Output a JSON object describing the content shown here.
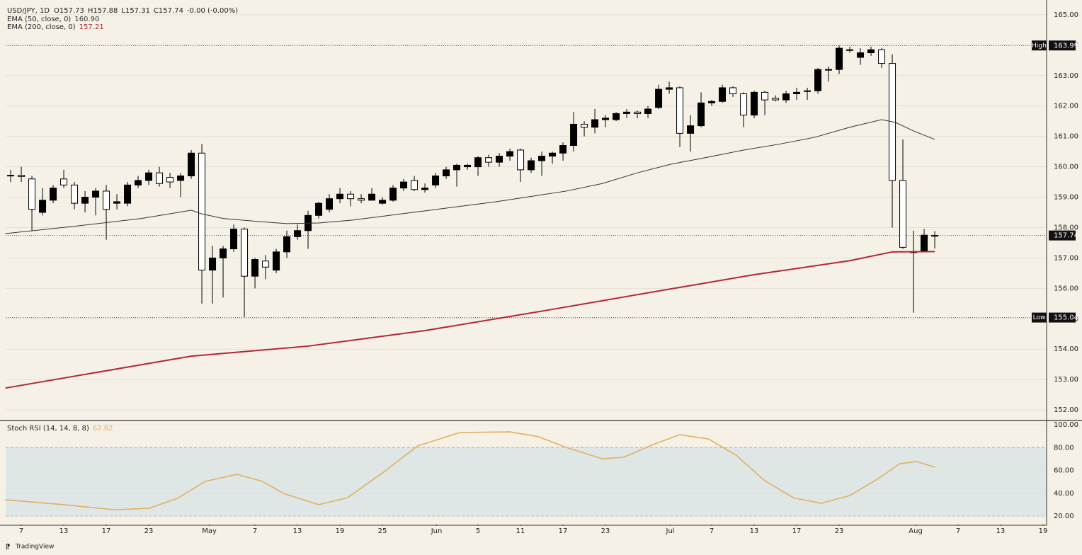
{
  "header": {
    "symbol": "USD/JPY, 1D",
    "ohlc": [
      "O157.73",
      "H157.88",
      "L157.31",
      "C157.74",
      "-0.00 (-0.00%)"
    ]
  },
  "chart_data": [
    {
      "type": "candlestick",
      "up_color": "#000000",
      "down_color": "#ffffff",
      "open": [
        159.7,
        159.72,
        159.6,
        158.5,
        158.9,
        159.6,
        159.4,
        158.8,
        159.0,
        159.2,
        158.8,
        158.8,
        159.4,
        159.55,
        159.8,
        159.65,
        159.55,
        159.7,
        160.45,
        156.6,
        157.0,
        157.3,
        157.95,
        156.4,
        156.9,
        156.6,
        157.2,
        157.7,
        157.9,
        158.4,
        158.6,
        158.95,
        159.1,
        158.95,
        158.9,
        158.8,
        158.9,
        159.3,
        159.55,
        159.25,
        159.4,
        159.7,
        159.9,
        160.0,
        160.0,
        160.3,
        160.15,
        160.35,
        160.55,
        159.9,
        160.2,
        160.35,
        160.45,
        160.7,
        161.4,
        161.3,
        161.55,
        161.55,
        161.75,
        161.8,
        161.75,
        161.95,
        162.55,
        162.6,
        161.1,
        161.35,
        162.1,
        162.15,
        162.6,
        162.4,
        161.7,
        162.45,
        162.25,
        162.2,
        162.4,
        162.5,
        162.5,
        163.2,
        163.2,
        163.85,
        163.6,
        163.75,
        163.85,
        163.4,
        159.55,
        157.2,
        157.2,
        157.73
      ],
      "high": [
        159.9,
        160.0,
        159.7,
        159.3,
        159.4,
        159.9,
        159.5,
        159.2,
        159.3,
        159.4,
        159.1,
        159.5,
        159.7,
        159.9,
        160.0,
        159.8,
        159.8,
        160.55,
        160.75,
        157.4,
        157.4,
        158.1,
        158.0,
        157.0,
        157.1,
        157.3,
        157.9,
        158.1,
        158.55,
        158.85,
        159.1,
        159.3,
        159.2,
        159.1,
        159.3,
        159.0,
        159.4,
        159.6,
        159.7,
        159.45,
        159.8,
        160.0,
        160.1,
        160.1,
        160.35,
        160.4,
        160.45,
        160.6,
        160.6,
        160.3,
        160.5,
        160.5,
        160.8,
        161.8,
        161.5,
        161.9,
        161.7,
        161.8,
        161.9,
        161.85,
        162.0,
        162.7,
        162.8,
        162.65,
        161.7,
        162.45,
        162.2,
        162.7,
        162.65,
        162.45,
        162.5,
        162.5,
        162.35,
        162.5,
        162.6,
        162.6,
        163.25,
        163.3,
        163.99,
        163.95,
        163.9,
        163.95,
        163.9,
        163.7,
        160.9,
        157.9,
        157.95,
        157.88
      ],
      "low": [
        159.5,
        159.5,
        157.9,
        158.4,
        158.8,
        159.3,
        158.6,
        158.5,
        158.4,
        157.6,
        158.6,
        158.7,
        159.3,
        159.4,
        159.35,
        159.3,
        159.0,
        159.6,
        155.5,
        155.5,
        155.7,
        157.2,
        155.05,
        156.0,
        156.3,
        156.5,
        157.0,
        157.6,
        157.3,
        158.3,
        158.5,
        158.8,
        158.7,
        158.8,
        158.9,
        158.75,
        158.85,
        159.2,
        159.2,
        159.15,
        159.3,
        159.6,
        159.35,
        159.9,
        159.7,
        160.0,
        160.0,
        160.2,
        159.5,
        159.8,
        159.7,
        160.1,
        160.2,
        160.5,
        161.0,
        161.1,
        161.3,
        161.5,
        161.6,
        161.6,
        161.6,
        161.9,
        162.4,
        160.65,
        160.5,
        161.3,
        162.0,
        162.1,
        162.3,
        161.3,
        161.6,
        161.7,
        162.15,
        162.1,
        162.2,
        162.2,
        162.4,
        162.8,
        163.05,
        163.75,
        163.35,
        163.65,
        163.25,
        158.0,
        157.3,
        155.2,
        157.2,
        157.31
      ],
      "close": [
        159.72,
        159.68,
        158.6,
        158.9,
        159.3,
        159.4,
        158.8,
        159.0,
        159.2,
        158.6,
        158.85,
        159.4,
        159.55,
        159.8,
        159.45,
        159.5,
        159.7,
        160.45,
        156.6,
        157.0,
        157.3,
        157.95,
        156.4,
        156.95,
        156.7,
        157.2,
        157.7,
        157.9,
        158.4,
        158.8,
        158.95,
        159.1,
        158.95,
        158.9,
        159.1,
        158.9,
        159.3,
        159.5,
        159.25,
        159.3,
        159.7,
        159.9,
        160.05,
        160.05,
        160.3,
        160.15,
        160.35,
        160.5,
        159.9,
        160.2,
        160.35,
        160.45,
        160.7,
        161.4,
        161.3,
        161.55,
        161.6,
        161.75,
        161.8,
        161.75,
        161.9,
        162.55,
        162.6,
        161.1,
        161.35,
        162.1,
        162.15,
        162.6,
        162.4,
        161.7,
        162.45,
        162.2,
        162.2,
        162.4,
        162.45,
        162.5,
        163.2,
        163.2,
        163.9,
        163.85,
        163.75,
        163.85,
        163.4,
        159.55,
        157.35,
        157.2,
        157.75,
        157.74
      ],
      "series": [
        {
          "name": "EMA (50, close, 0)",
          "color": "#333333",
          "legend_value": {
            "value": 160.9,
            "label": "160.90"
          },
          "x": [
            -0.5,
            5.7,
            12.3,
            17,
            18,
            20,
            23.3,
            26,
            29,
            32.3,
            39,
            45.7,
            52.3,
            55.7,
            59,
            62.1,
            65.7,
            69,
            72.3,
            75.7,
            79,
            82,
            83.3,
            85,
            87
          ],
          "values": [
            157.8,
            158.03,
            158.3,
            158.57,
            158.45,
            158.3,
            158.2,
            158.13,
            158.15,
            158.25,
            158.55,
            158.85,
            159.2,
            159.45,
            159.8,
            160.08,
            160.32,
            160.55,
            160.74,
            160.97,
            161.3,
            161.55,
            161.46,
            161.18,
            160.9
          ]
        },
        {
          "name": "EMA (200, close, 0)",
          "color": "#b22833",
          "legend_value": 157.21,
          "x": [
            -0.5,
            17,
            28,
            39,
            50,
            62.1,
            70,
            79,
            83,
            87
          ],
          "values": [
            152.72,
            153.77,
            154.1,
            154.61,
            155.25,
            155.98,
            156.45,
            156.91,
            157.2,
            157.21
          ]
        }
      ],
      "markers": [
        {
          "label": "High",
          "value": 163.99
        },
        {
          "label": "Low",
          "value": 155.04
        }
      ],
      "last_price": 157.74,
      "xlim": [
        -0.47,
        97.53
      ],
      "xticks": [
        {
          "value": 1,
          "label": "7"
        },
        {
          "value": 5,
          "label": "13"
        },
        {
          "value": 9,
          "label": "17"
        },
        {
          "value": 13,
          "label": "23"
        },
        {
          "value": 18.7,
          "label": "May"
        },
        {
          "value": 23,
          "label": "7"
        },
        {
          "value": 27,
          "label": "13"
        },
        {
          "value": 31,
          "label": "19"
        },
        {
          "value": 35,
          "label": "25"
        },
        {
          "value": 40.1,
          "label": "Jun"
        },
        {
          "value": 44,
          "label": "5"
        },
        {
          "value": 48,
          "label": "11"
        },
        {
          "value": 52,
          "label": "17"
        },
        {
          "value": 56,
          "label": "23"
        },
        {
          "value": 62.1,
          "label": "Jul"
        },
        {
          "value": 66,
          "label": "7"
        },
        {
          "value": 70,
          "label": "13"
        },
        {
          "value": 74,
          "label": "17"
        },
        {
          "value": 78,
          "label": "23"
        },
        {
          "value": 85.2,
          "label": "Aug"
        },
        {
          "value": 89.2,
          "label": "7"
        },
        {
          "value": 93.2,
          "label": "13"
        },
        {
          "value": 97.2,
          "label": "19"
        }
      ],
      "ylim": [
        151.7,
        165.3
      ],
      "yticks": [
        {
          "value": 152,
          "label": "152.00"
        },
        {
          "value": 153,
          "label": "153.00"
        },
        {
          "value": 154,
          "label": "154.00"
        },
        {
          "value": 155,
          "label": "155.00"
        },
        {
          "value": 156,
          "label": "156.00"
        },
        {
          "value": 157,
          "label": "157.00"
        },
        {
          "value": 158,
          "label": "158.00"
        },
        {
          "value": 159,
          "label": "159.00"
        },
        {
          "value": 160,
          "label": "160.00"
        },
        {
          "value": 161,
          "label": "161.00"
        },
        {
          "value": 162,
          "label": "162.00"
        },
        {
          "value": 163,
          "label": "163.00"
        },
        {
          "value": 164,
          "label": "164.00"
        },
        {
          "value": 165,
          "label": "165.00"
        }
      ],
      "grid": true
    },
    {
      "type": "line",
      "title": "Stoch RSI (14, 14, 8, 8)",
      "legend_value": 62.82,
      "series": [
        {
          "color": "#e0b062",
          "x": [
            -0.5,
            5,
            9.7,
            13,
            15.7,
            18.3,
            21.3,
            23.7,
            25.7,
            29,
            31.7,
            35,
            38.3,
            42.3,
            47,
            49.7,
            52.3,
            55.7,
            57.7,
            60.3,
            63,
            65.7,
            68.3,
            71,
            73.7,
            76.3,
            79,
            81.7,
            83.7,
            85.3,
            87
          ],
          "values": [
            34.3,
            30,
            25.6,
            26.8,
            35.5,
            50.4,
            56.6,
            50.4,
            39.8,
            30,
            36,
            57.8,
            81.4,
            93.2,
            93.8,
            89.5,
            80.2,
            70.2,
            71.5,
            82,
            91.3,
            87.6,
            73.3,
            51,
            36,
            31.2,
            38,
            52.9,
            65.9,
            67.8,
            62.82
          ]
        }
      ],
      "band": [
        20,
        80
      ],
      "band_color": "#dfe6e6",
      "xlim": [
        -0.47,
        97.53
      ],
      "ylim": [
        13.2,
        102.5
      ],
      "yticks": [
        {
          "value": 20,
          "label": "20.00"
        },
        {
          "value": 40,
          "label": "40.00"
        },
        {
          "value": 60,
          "label": "60.00"
        },
        {
          "value": 80,
          "label": "80.00"
        },
        {
          "value": 100,
          "label": "100.00"
        }
      ],
      "grid": true
    }
  ],
  "footer": {
    "brand": "TradingView"
  }
}
